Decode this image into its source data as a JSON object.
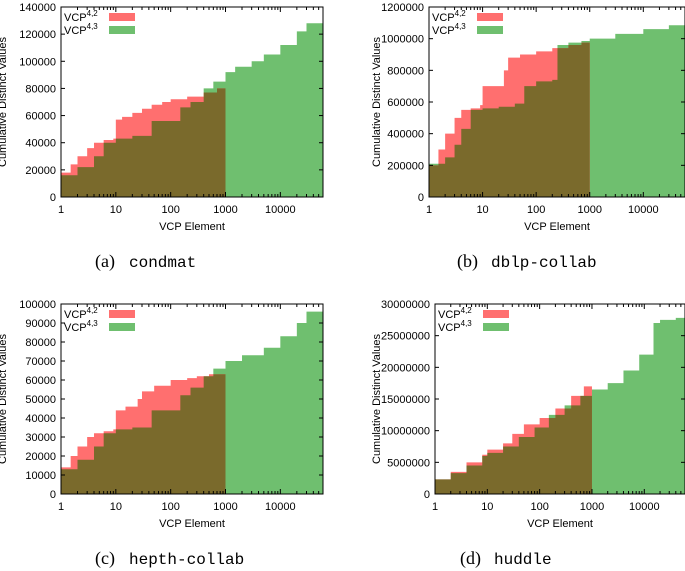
{
  "colors": {
    "vcp42": "#ff6f6f",
    "vcp43": "#6fbf6f",
    "overlap": "#7a6a2c",
    "axis": "#000000"
  },
  "chart_data": [
    {
      "type": "area",
      "caption_letter": "(a)",
      "caption_name": "condmat",
      "xlabel": "VCP Element",
      "ylabel": "Cumulative Distinct Values",
      "xscale": "log",
      "xlim": [
        1,
        60000
      ],
      "ylim": [
        0,
        140000
      ],
      "xticks": [
        1,
        10,
        100,
        1000,
        10000
      ],
      "xtick_labels": [
        "1",
        "10",
        "100",
        "1000",
        "10000"
      ],
      "yticks": [
        0,
        20000,
        40000,
        60000,
        80000,
        100000,
        120000,
        140000
      ],
      "ytick_labels": [
        "0",
        "20000",
        "40000",
        "60000",
        "80000",
        "100000",
        "120000",
        "140000"
      ],
      "legend_position": "top-left",
      "series": [
        {
          "name": "VCP4,2",
          "name_base": "VCP",
          "name_sup": "4,2",
          "color": "#ff6f6f",
          "x": [
            1,
            1.5,
            2,
            3,
            4,
            6,
            9,
            10,
            13,
            20,
            30,
            45,
            70,
            100,
            200,
            400,
            700,
            1000
          ],
          "y": [
            18000,
            24000,
            30000,
            36000,
            40000,
            42000,
            43000,
            57000,
            59000,
            62000,
            65000,
            68000,
            70000,
            72000,
            74000,
            77000,
            80000,
            85000
          ]
        },
        {
          "name": "VCP4,3",
          "name_base": "VCP",
          "name_sup": "4,3",
          "color": "#6fbf6f",
          "x": [
            1,
            2,
            4,
            6,
            10,
            20,
            35,
            45,
            80,
            150,
            230,
            400,
            600,
            1000,
            1500,
            3000,
            5000,
            10000,
            20000,
            30000,
            60000
          ],
          "y": [
            16000,
            22000,
            30000,
            40000,
            43000,
            45000,
            45000,
            56000,
            56000,
            66000,
            70000,
            80000,
            85000,
            92000,
            96000,
            100000,
            105000,
            112000,
            122000,
            128000,
            130000
          ]
        }
      ]
    },
    {
      "type": "area",
      "caption_letter": "(b)",
      "caption_name": "dblp-collab",
      "xlabel": "VCP Element",
      "ylabel": "Cumulative Distinct Values",
      "xscale": "log",
      "xlim": [
        1,
        60000
      ],
      "ylim": [
        0,
        1200000
      ],
      "xticks": [
        1,
        10,
        100,
        1000,
        10000
      ],
      "xtick_labels": [
        "1",
        "10",
        "100",
        "1000",
        "10000"
      ],
      "yticks": [
        0,
        200000,
        400000,
        600000,
        800000,
        1000000,
        1200000
      ],
      "ytick_labels": [
        "0",
        "200000",
        "400000",
        "600000",
        "800000",
        "1000000",
        "1200000"
      ],
      "legend_position": "top-left",
      "series": [
        {
          "name": "VCP4,2",
          "name_base": "VCP",
          "name_sup": "4,2",
          "color": "#ff6f6f",
          "x": [
            1,
            1.5,
            2,
            3,
            4,
            6,
            9,
            10,
            15,
            25,
            30,
            50,
            100,
            200,
            400,
            700,
            1000
          ],
          "y": [
            200000,
            300000,
            400000,
            500000,
            550000,
            560000,
            580000,
            700000,
            700000,
            800000,
            880000,
            900000,
            920000,
            940000,
            960000,
            975000,
            985000
          ]
        },
        {
          "name": "VCP4,3",
          "name_base": "VCP",
          "name_sup": "4,3",
          "color": "#6fbf6f",
          "x": [
            1,
            2,
            3,
            4,
            6,
            10,
            20,
            40,
            60,
            100,
            200,
            250,
            400,
            700,
            1000,
            3000,
            10000,
            30000,
            60000
          ],
          "y": [
            210000,
            250000,
            330000,
            430000,
            550000,
            560000,
            570000,
            590000,
            700000,
            730000,
            740000,
            960000,
            975000,
            985000,
            1000000,
            1030000,
            1060000,
            1085000,
            1095000
          ]
        }
      ]
    },
    {
      "type": "area",
      "caption_letter": "(c)",
      "caption_name": "hepth-collab",
      "xlabel": "VCP Element",
      "ylabel": "Cumulative Distinct Values",
      "xscale": "log",
      "xlim": [
        1,
        60000
      ],
      "ylim": [
        0,
        100000
      ],
      "xticks": [
        1,
        10,
        100,
        1000,
        10000
      ],
      "xtick_labels": [
        "1",
        "10",
        "100",
        "1000",
        "10000"
      ],
      "yticks": [
        0,
        10000,
        20000,
        30000,
        40000,
        50000,
        60000,
        70000,
        80000,
        90000,
        100000
      ],
      "ytick_labels": [
        "0",
        "10000",
        "20000",
        "30000",
        "40000",
        "50000",
        "60000",
        "70000",
        "80000",
        "90000",
        "100000"
      ],
      "legend_position": "top-left",
      "series": [
        {
          "name": "VCP4,2",
          "name_base": "VCP",
          "name_sup": "4,2",
          "color": "#ff6f6f",
          "x": [
            1,
            1.5,
            2,
            3,
            4,
            6,
            9,
            10,
            15,
            25,
            30,
            50,
            100,
            200,
            300,
            500,
            1000
          ],
          "y": [
            14000,
            20000,
            25000,
            30000,
            32000,
            33000,
            34000,
            44000,
            46000,
            50000,
            54000,
            57000,
            60000,
            61000,
            62000,
            63000,
            66000
          ]
        },
        {
          "name": "VCP4,3",
          "name_base": "VCP",
          "name_sup": "4,3",
          "color": "#6fbf6f",
          "x": [
            1,
            2,
            4,
            6,
            10,
            20,
            35,
            45,
            80,
            150,
            230,
            400,
            600,
            1000,
            2000,
            5000,
            10000,
            20000,
            30000,
            60000
          ],
          "y": [
            13000,
            18000,
            25000,
            32000,
            34000,
            35000,
            35000,
            44000,
            44000,
            52000,
            56000,
            62000,
            66000,
            70000,
            73000,
            77000,
            83000,
            90000,
            96000,
            99000
          ]
        }
      ]
    },
    {
      "type": "area",
      "caption_letter": "(d)",
      "caption_name": "huddle",
      "xlabel": "VCP Element",
      "ylabel": "Cumulative Distinct Values",
      "xscale": "log",
      "xlim": [
        1,
        60000
      ],
      "ylim": [
        0,
        30000000
      ],
      "xticks": [
        1,
        10,
        100,
        1000,
        10000
      ],
      "xtick_labels": [
        "1",
        "10",
        "100",
        "1000",
        "10000"
      ],
      "yticks": [
        0,
        5000000,
        10000000,
        15000000,
        20000000,
        25000000,
        30000000
      ],
      "ytick_labels": [
        "0",
        "5000000",
        "10000000",
        "15000000",
        "20000000",
        "25000000",
        "30000000"
      ],
      "legend_position": "top-left",
      "series": [
        {
          "name": "VCP4,2",
          "name_base": "VCP",
          "name_sup": "4,2",
          "color": "#ff6f6f",
          "x": [
            1,
            2,
            4,
            8,
            10,
            20,
            30,
            50,
            100,
            200,
            400,
            700,
            1000
          ],
          "y": [
            2300000,
            3500000,
            5000000,
            6200000,
            7000000,
            8000000,
            9500000,
            11000000,
            12000000,
            13500000,
            15500000,
            17000000,
            17500000
          ]
        },
        {
          "name": "VCP4,3",
          "name_base": "VCP",
          "name_sup": "4,3",
          "color": "#6fbf6f",
          "x": [
            1,
            2,
            4,
            8,
            10,
            20,
            40,
            80,
            150,
            300,
            600,
            1000,
            2000,
            4000,
            8000,
            15000,
            20000,
            40000,
            60000
          ],
          "y": [
            2300000,
            3300000,
            4500000,
            6000000,
            6500000,
            7500000,
            9000000,
            10500000,
            12500000,
            14000000,
            15500000,
            16500000,
            17500000,
            19500000,
            22000000,
            27000000,
            27500000,
            27800000,
            27800000
          ]
        }
      ]
    }
  ]
}
